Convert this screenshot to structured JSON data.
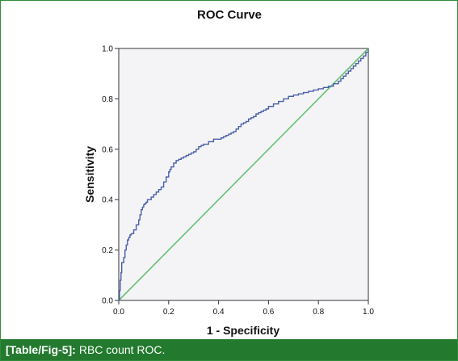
{
  "chart_data": {
    "type": "line",
    "title": "ROC Curve",
    "xlabel": "1 - Specificity",
    "ylabel": "Sensitivity",
    "xlim": [
      0,
      1
    ],
    "ylim": [
      0,
      1
    ],
    "xticks": [
      "0.0",
      "0.2",
      "0.4",
      "0.6",
      "0.8",
      "1.0"
    ],
    "yticks": [
      "0.0",
      "0.2",
      "0.4",
      "0.6",
      "0.8",
      "1.0"
    ],
    "grid": false,
    "legend": "none",
    "series": [
      {
        "kind": "roc-curve",
        "color": "#4a5fa8",
        "x": [
          0,
          0.003,
          0.006,
          0.009,
          0.012,
          0.02,
          0.025,
          0.03,
          0.035,
          0.04,
          0.045,
          0.05,
          0.06,
          0.07,
          0.08,
          0.085,
          0.09,
          0.095,
          0.1,
          0.105,
          0.11,
          0.115,
          0.12,
          0.13,
          0.14,
          0.15,
          0.16,
          0.17,
          0.18,
          0.19,
          0.2,
          0.205,
          0.21,
          0.22,
          0.23,
          0.24,
          0.25,
          0.26,
          0.27,
          0.28,
          0.29,
          0.3,
          0.31,
          0.32,
          0.33,
          0.34,
          0.35,
          0.36,
          0.37,
          0.38,
          0.39,
          0.4,
          0.41,
          0.42,
          0.43,
          0.44,
          0.45,
          0.46,
          0.47,
          0.48,
          0.49,
          0.5,
          0.51,
          0.52,
          0.53,
          0.54,
          0.55,
          0.56,
          0.57,
          0.58,
          0.59,
          0.6,
          0.62,
          0.64,
          0.66,
          0.68,
          0.7,
          0.72,
          0.74,
          0.76,
          0.78,
          0.8,
          0.82,
          0.84,
          0.86,
          0.88,
          0.89,
          0.9,
          0.91,
          0.92,
          0.93,
          0.94,
          0.95,
          0.96,
          0.97,
          0.98,
          0.99,
          1.0
        ],
        "y": [
          0,
          0.04,
          0.08,
          0.11,
          0.15,
          0.17,
          0.2,
          0.22,
          0.24,
          0.25,
          0.26,
          0.265,
          0.28,
          0.3,
          0.32,
          0.34,
          0.36,
          0.37,
          0.38,
          0.385,
          0.39,
          0.4,
          0.4,
          0.41,
          0.42,
          0.43,
          0.44,
          0.45,
          0.47,
          0.49,
          0.51,
          0.52,
          0.53,
          0.545,
          0.555,
          0.56,
          0.565,
          0.57,
          0.575,
          0.58,
          0.585,
          0.59,
          0.6,
          0.61,
          0.615,
          0.62,
          0.62,
          0.63,
          0.63,
          0.64,
          0.64,
          0.64,
          0.645,
          0.65,
          0.655,
          0.66,
          0.665,
          0.67,
          0.68,
          0.69,
          0.7,
          0.705,
          0.71,
          0.72,
          0.725,
          0.73,
          0.74,
          0.745,
          0.75,
          0.755,
          0.76,
          0.77,
          0.78,
          0.79,
          0.8,
          0.81,
          0.815,
          0.82,
          0.825,
          0.83,
          0.835,
          0.84,
          0.845,
          0.85,
          0.86,
          0.87,
          0.88,
          0.89,
          0.9,
          0.91,
          0.92,
          0.93,
          0.94,
          0.95,
          0.96,
          0.97,
          0.985,
          1.0
        ]
      },
      {
        "kind": "reference-line",
        "color": "#66c273",
        "x": [
          0,
          1
        ],
        "y": [
          0,
          1
        ]
      }
    ]
  },
  "caption": {
    "label": "[Table/Fig-5]:",
    "text": "RBC count ROC."
  }
}
